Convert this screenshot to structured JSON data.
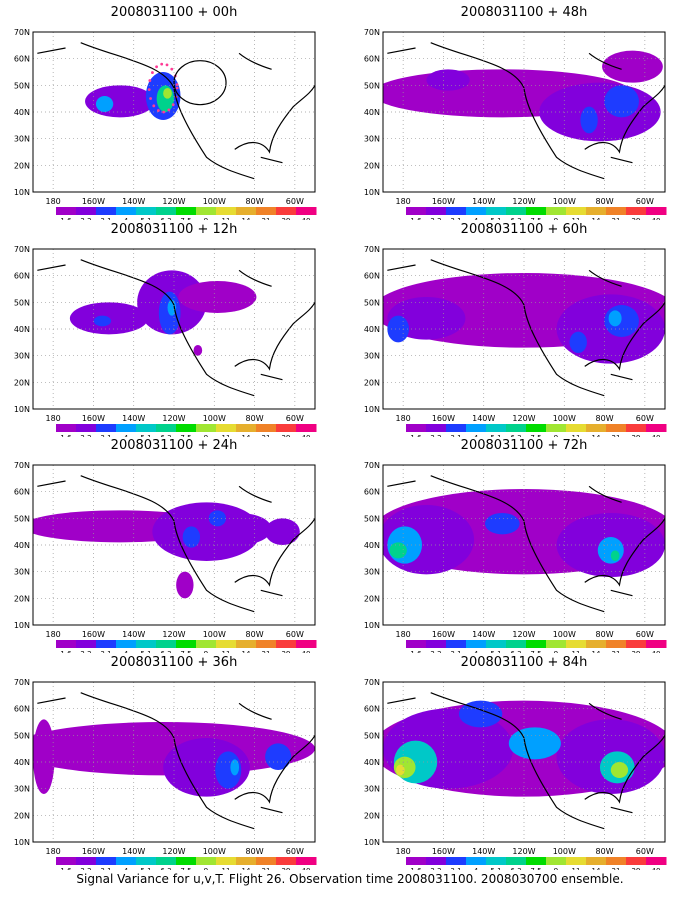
{
  "caption": "Signal Variance for u,v,T. Flight 26. Observation time 2008031100. 2008030700 ensemble.",
  "axes": {
    "x_ticks": [
      "180",
      "160W",
      "140W",
      "120W",
      "100W",
      "80W",
      "60W"
    ],
    "y_ticks": [
      "10N",
      "20N",
      "30N",
      "40N",
      "50N",
      "60N",
      "70N"
    ]
  },
  "colorbar": {
    "levels": [
      "1.6",
      "2.2",
      "3.1",
      "4",
      "5.1",
      "6.3",
      "7.5",
      "9",
      "11",
      "14",
      "21",
      "29",
      "40"
    ],
    "colors": [
      "#a000c8",
      "#8200dc",
      "#1e3cff",
      "#00a0ff",
      "#00c8c8",
      "#00d28c",
      "#00dc00",
      "#a0e632",
      "#e6dc32",
      "#e6af2d",
      "#f08228",
      "#fa3c3c",
      "#f00082"
    ]
  },
  "chart_data": [
    {
      "type": "heatmap",
      "title": "2008031100 + 00h",
      "lead_hours": 0,
      "xlim": [
        -190,
        -60
      ],
      "ylim": [
        10,
        70
      ],
      "blobs": [
        {
          "lon": -150,
          "lat": 44,
          "level": 1,
          "rx": 16,
          "ry": 6
        },
        {
          "lon": -157,
          "lat": 43,
          "level": 3,
          "rx": 4,
          "ry": 3
        },
        {
          "lon": -130,
          "lat": 46,
          "level": 2,
          "rx": 8,
          "ry": 9
        },
        {
          "lon": -129,
          "lat": 45,
          "level": 5,
          "rx": 4,
          "ry": 5
        },
        {
          "lon": -128,
          "lat": 47,
          "level": 7,
          "rx": 2,
          "ry": 2
        }
      ],
      "dot_markers": {
        "lon": -130,
        "lat": 49,
        "color": "#ff3c96"
      },
      "circle_marker": {
        "lon": -113,
        "lat": 51
      }
    },
    {
      "type": "heatmap",
      "title": "2008031100 + 12h",
      "lead_hours": 12,
      "xlim": [
        -190,
        -60
      ],
      "ylim": [
        10,
        70
      ],
      "blobs": [
        {
          "lon": -155,
          "lat": 44,
          "level": 1,
          "rx": 18,
          "ry": 6
        },
        {
          "lon": -126,
          "lat": 50,
          "level": 1,
          "rx": 16,
          "ry": 12
        },
        {
          "lon": -105,
          "lat": 52,
          "level": 0,
          "rx": 18,
          "ry": 6
        },
        {
          "lon": -127,
          "lat": 46,
          "level": 2,
          "rx": 5,
          "ry": 8
        },
        {
          "lon": -158,
          "lat": 43,
          "level": 2,
          "rx": 4,
          "ry": 2
        },
        {
          "lon": -126,
          "lat": 48,
          "level": 3,
          "rx": 2,
          "ry": 3
        },
        {
          "lon": -114,
          "lat": 32,
          "level": 0,
          "rx": 2,
          "ry": 2
        }
      ]
    },
    {
      "type": "heatmap",
      "title": "2008031100 + 24h",
      "lead_hours": 24,
      "xlim": [
        -190,
        -60
      ],
      "ylim": [
        10,
        70
      ],
      "blobs": [
        {
          "lon": -150,
          "lat": 47,
          "level": 0,
          "rx": 45,
          "ry": 6
        },
        {
          "lon": -110,
          "lat": 45,
          "level": 1,
          "rx": 25,
          "ry": 11
        },
        {
          "lon": -95,
          "lat": 46,
          "level": 1,
          "rx": 15,
          "ry": 6
        },
        {
          "lon": -117,
          "lat": 43,
          "level": 2,
          "rx": 4,
          "ry": 4
        },
        {
          "lon": -105,
          "lat": 50,
          "level": 2,
          "rx": 4,
          "ry": 3
        },
        {
          "lon": -75,
          "lat": 45,
          "level": 1,
          "rx": 8,
          "ry": 5
        },
        {
          "lon": -120,
          "lat": 25,
          "level": 0,
          "rx": 4,
          "ry": 5
        }
      ]
    },
    {
      "type": "heatmap",
      "title": "2008031100 + 36h",
      "lead_hours": 36,
      "xlim": [
        -190,
        -60
      ],
      "ylim": [
        10,
        70
      ],
      "blobs": [
        {
          "lon": -130,
          "lat": 45,
          "level": 0,
          "rx": 70,
          "ry": 10
        },
        {
          "lon": -110,
          "lat": 38,
          "level": 1,
          "rx": 20,
          "ry": 11
        },
        {
          "lon": -100,
          "lat": 37,
          "level": 2,
          "rx": 6,
          "ry": 7
        },
        {
          "lon": -77,
          "lat": 42,
          "level": 2,
          "rx": 6,
          "ry": 5
        },
        {
          "lon": -185,
          "lat": 42,
          "level": 0,
          "rx": 5,
          "ry": 14
        },
        {
          "lon": -97,
          "lat": 38,
          "level": 3,
          "rx": 2,
          "ry": 3
        }
      ]
    },
    {
      "type": "heatmap",
      "title": "2008031100 + 48h",
      "lead_hours": 48,
      "xlim": [
        -190,
        -60
      ],
      "ylim": [
        10,
        70
      ],
      "blobs": [
        {
          "lon": -135,
          "lat": 47,
          "level": 0,
          "rx": 60,
          "ry": 9
        },
        {
          "lon": -90,
          "lat": 40,
          "level": 1,
          "rx": 28,
          "ry": 11
        },
        {
          "lon": -80,
          "lat": 44,
          "level": 2,
          "rx": 8,
          "ry": 6
        },
        {
          "lon": -95,
          "lat": 37,
          "level": 2,
          "rx": 4,
          "ry": 5
        },
        {
          "lon": -160,
          "lat": 52,
          "level": 1,
          "rx": 10,
          "ry": 4
        },
        {
          "lon": -75,
          "lat": 57,
          "level": 0,
          "rx": 14,
          "ry": 6
        }
      ]
    },
    {
      "type": "heatmap",
      "title": "2008031100 + 60h",
      "lead_hours": 60,
      "xlim": [
        -190,
        -60
      ],
      "ylim": [
        10,
        70
      ],
      "blobs": [
        {
          "lon": -125,
          "lat": 47,
          "level": 0,
          "rx": 70,
          "ry": 14
        },
        {
          "lon": -85,
          "lat": 40,
          "level": 1,
          "rx": 25,
          "ry": 13
        },
        {
          "lon": -170,
          "lat": 44,
          "level": 1,
          "rx": 18,
          "ry": 8
        },
        {
          "lon": -80,
          "lat": 43,
          "level": 2,
          "rx": 8,
          "ry": 6
        },
        {
          "lon": -183,
          "lat": 40,
          "level": 2,
          "rx": 5,
          "ry": 5
        },
        {
          "lon": -100,
          "lat": 35,
          "level": 2,
          "rx": 4,
          "ry": 4
        },
        {
          "lon": -83,
          "lat": 44,
          "level": 3,
          "rx": 3,
          "ry": 3
        }
      ]
    },
    {
      "type": "heatmap",
      "title": "2008031100 + 72h",
      "lead_hours": 72,
      "xlim": [
        -190,
        -60
      ],
      "ylim": [
        10,
        70
      ],
      "blobs": [
        {
          "lon": -125,
          "lat": 45,
          "level": 0,
          "rx": 70,
          "ry": 16
        },
        {
          "lon": -170,
          "lat": 42,
          "level": 1,
          "rx": 22,
          "ry": 13
        },
        {
          "lon": -85,
          "lat": 40,
          "level": 1,
          "rx": 25,
          "ry": 12
        },
        {
          "lon": -180,
          "lat": 40,
          "level": 3,
          "rx": 8,
          "ry": 7
        },
        {
          "lon": -183,
          "lat": 38,
          "level": 5,
          "rx": 4,
          "ry": 3
        },
        {
          "lon": -85,
          "lat": 38,
          "level": 3,
          "rx": 6,
          "ry": 5
        },
        {
          "lon": -83,
          "lat": 36,
          "level": 5,
          "rx": 2,
          "ry": 2
        },
        {
          "lon": -135,
          "lat": 48,
          "level": 2,
          "rx": 8,
          "ry": 4
        }
      ]
    },
    {
      "type": "heatmap",
      "title": "2008031100 + 84h",
      "lead_hours": 84,
      "xlim": [
        -190,
        -60
      ],
      "ylim": [
        10,
        70
      ],
      "blobs": [
        {
          "lon": -125,
          "lat": 45,
          "level": 0,
          "rx": 70,
          "ry": 18
        },
        {
          "lon": -160,
          "lat": 45,
          "level": 1,
          "rx": 30,
          "ry": 15
        },
        {
          "lon": -85,
          "lat": 42,
          "level": 1,
          "rx": 25,
          "ry": 14
        },
        {
          "lon": -175,
          "lat": 40,
          "level": 4,
          "rx": 10,
          "ry": 8
        },
        {
          "lon": -180,
          "lat": 38,
          "level": 7,
          "rx": 5,
          "ry": 4
        },
        {
          "lon": -182,
          "lat": 37,
          "level": 8,
          "rx": 2,
          "ry": 2
        },
        {
          "lon": -82,
          "lat": 38,
          "level": 4,
          "rx": 8,
          "ry": 6
        },
        {
          "lon": -81,
          "lat": 37,
          "level": 7,
          "rx": 4,
          "ry": 3
        },
        {
          "lon": -120,
          "lat": 47,
          "level": 3,
          "rx": 12,
          "ry": 6
        },
        {
          "lon": -145,
          "lat": 58,
          "level": 2,
          "rx": 10,
          "ry": 5
        }
      ]
    }
  ]
}
